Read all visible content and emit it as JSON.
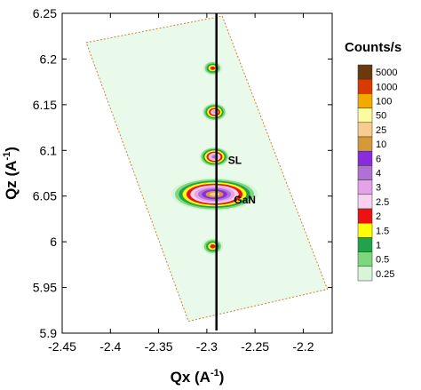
{
  "chart_data": {
    "type": "heatmap",
    "title": "",
    "xlabel": "Qx (A",
    "xlabel_sup": "-1",
    "xlabel_end": ")",
    "ylabel": "Qz (A",
    "ylabel_sup": "-1",
    "ylabel_end": ")",
    "xlim": [
      -2.45,
      -2.17
    ],
    "ylim": [
      5.9,
      6.25
    ],
    "x_ticks": [
      -2.45,
      -2.4,
      -2.35,
      -2.3,
      -2.25,
      -2.2
    ],
    "x_tick_labels": [
      "-2.45",
      "-2.4",
      "-2.35",
      "-2.3",
      "-2.25",
      "-2.2"
    ],
    "y_ticks": [
      5.9,
      5.95,
      6.0,
      6.05,
      6.1,
      6.15,
      6.2,
      6.25
    ],
    "y_tick_labels": [
      "5.9",
      "5.95",
      "6",
      "6.05",
      "6.1",
      "6.15",
      "6.2",
      "6.25"
    ],
    "grid": false,
    "scan_region_corners": [
      [
        -2.425,
        6.218
      ],
      [
        -2.284,
        6.247
      ],
      [
        -2.175,
        5.948
      ],
      [
        -2.319,
        5.913
      ]
    ],
    "vertical_line_x": -2.29,
    "peaks": [
      {
        "label": "GaN",
        "qx": -2.292,
        "qz": 6.052,
        "width": 0.045,
        "height": 0.018,
        "level": 10
      },
      {
        "label": "SL",
        "qx": -2.292,
        "qz": 6.093,
        "width": 0.016,
        "height": 0.011,
        "level": 7
      },
      {
        "label": "",
        "qx": -2.292,
        "qz": 6.142,
        "width": 0.013,
        "height": 0.01,
        "level": 6
      },
      {
        "label": "",
        "qx": -2.294,
        "qz": 6.19,
        "width": 0.01,
        "height": 0.008,
        "level": 4
      },
      {
        "label": "",
        "qx": -2.294,
        "qz": 5.995,
        "width": 0.011,
        "height": 0.009,
        "level": 4
      }
    ],
    "annotations": [
      {
        "text": "SL",
        "qx": -2.278,
        "qz": 6.085
      },
      {
        "text": "GaN",
        "qx": -2.272,
        "qz": 6.042
      }
    ],
    "colorbar": {
      "title": "Counts/s",
      "levels": [
        {
          "label": "5000",
          "color": "#6b3a0c"
        },
        {
          "label": "1000",
          "color": "#d93a00"
        },
        {
          "label": "100",
          "color": "#f2a900"
        },
        {
          "label": "50",
          "color": "#fdfba0"
        },
        {
          "label": "25",
          "color": "#f8cc8f"
        },
        {
          "label": "10",
          "color": "#d49a3a"
        },
        {
          "label": "6",
          "color": "#8a2be2"
        },
        {
          "label": "4",
          "color": "#b070d8"
        },
        {
          "label": "3",
          "color": "#e4a2e8"
        },
        {
          "label": "2.5",
          "color": "#fad0f0"
        },
        {
          "label": "2",
          "color": "#ee1111"
        },
        {
          "label": "1.5",
          "color": "#ffff00"
        },
        {
          "label": "1",
          "color": "#22a24a"
        },
        {
          "label": "0.5",
          "color": "#7dd87d"
        },
        {
          "label": "0.25",
          "color": "#d8f5d8"
        }
      ]
    }
  }
}
